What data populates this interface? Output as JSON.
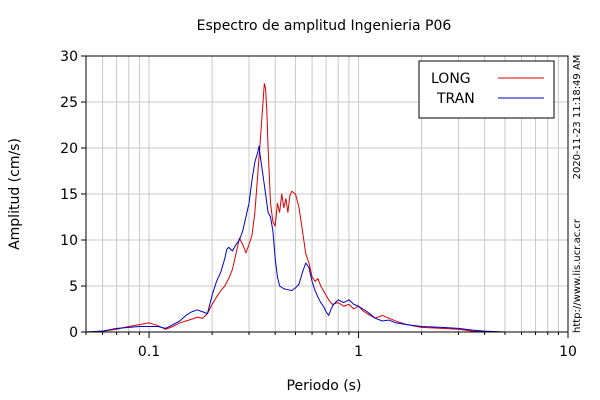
{
  "chart_data": {
    "type": "line",
    "title": "Espectro de amplitud Ingenieria P06",
    "xlabel": "Periodo (s)",
    "ylabel": "Amplitud (cm/s)",
    "x_scale": "log",
    "xlim": [
      0.05,
      10
    ],
    "ylim": [
      0,
      30
    ],
    "x_tick_labels": [
      {
        "value": 0.1,
        "label": "0.1"
      },
      {
        "value": 1,
        "label": "1"
      },
      {
        "value": 10,
        "label": "10"
      }
    ],
    "y_ticks": [
      0,
      5,
      10,
      15,
      20,
      25,
      30
    ],
    "grid": true,
    "legend_position": "top-right",
    "timestamp": "2020-11-23 11:18:49 AM",
    "url": "http://www.lis.ucr.ac.cr",
    "series": [
      {
        "name": "LONG",
        "color": "#dd0000",
        "points": [
          [
            0.05,
            0
          ],
          [
            0.06,
            0.1
          ],
          [
            0.07,
            0.3
          ],
          [
            0.08,
            0.6
          ],
          [
            0.09,
            0.8
          ],
          [
            0.1,
            1.0
          ],
          [
            0.11,
            0.7
          ],
          [
            0.12,
            0.3
          ],
          [
            0.13,
            0.6
          ],
          [
            0.14,
            1.0
          ],
          [
            0.15,
            1.2
          ],
          [
            0.16,
            1.4
          ],
          [
            0.17,
            1.6
          ],
          [
            0.18,
            1.5
          ],
          [
            0.19,
            2.0
          ],
          [
            0.2,
            3.0
          ],
          [
            0.21,
            3.8
          ],
          [
            0.22,
            4.5
          ],
          [
            0.23,
            5.0
          ],
          [
            0.24,
            5.8
          ],
          [
            0.25,
            6.8
          ],
          [
            0.26,
            8.5
          ],
          [
            0.27,
            10.2
          ],
          [
            0.28,
            9.5
          ],
          [
            0.29,
            8.6
          ],
          [
            0.3,
            9.5
          ],
          [
            0.31,
            10.5
          ],
          [
            0.32,
            13.0
          ],
          [
            0.33,
            17.0
          ],
          [
            0.34,
            21.0
          ],
          [
            0.35,
            25.0
          ],
          [
            0.355,
            27.0
          ],
          [
            0.36,
            26.5
          ],
          [
            0.365,
            24.0
          ],
          [
            0.37,
            20.0
          ],
          [
            0.38,
            14.0
          ],
          [
            0.39,
            12.0
          ],
          [
            0.4,
            11.5
          ],
          [
            0.41,
            14.0
          ],
          [
            0.42,
            13.0
          ],
          [
            0.43,
            15.0
          ],
          [
            0.44,
            13.5
          ],
          [
            0.45,
            14.5
          ],
          [
            0.46,
            13.0
          ],
          [
            0.47,
            14.8
          ],
          [
            0.48,
            15.3
          ],
          [
            0.5,
            15.0
          ],
          [
            0.52,
            13.5
          ],
          [
            0.54,
            11.0
          ],
          [
            0.56,
            8.5
          ],
          [
            0.58,
            7.5
          ],
          [
            0.6,
            6.0
          ],
          [
            0.62,
            5.5
          ],
          [
            0.64,
            5.8
          ],
          [
            0.66,
            5.0
          ],
          [
            0.68,
            4.5
          ],
          [
            0.7,
            4.0
          ],
          [
            0.72,
            3.5
          ],
          [
            0.75,
            3.0
          ],
          [
            0.8,
            3.2
          ],
          [
            0.85,
            2.8
          ],
          [
            0.9,
            3.0
          ],
          [
            0.95,
            2.5
          ],
          [
            1.0,
            2.8
          ],
          [
            1.05,
            2.3
          ],
          [
            1.1,
            2.0
          ],
          [
            1.2,
            1.5
          ],
          [
            1.3,
            1.8
          ],
          [
            1.4,
            1.5
          ],
          [
            1.5,
            1.2
          ],
          [
            1.7,
            0.8
          ],
          [
            2.0,
            0.5
          ],
          [
            2.5,
            0.4
          ],
          [
            3.0,
            0.3
          ],
          [
            3.5,
            0.1
          ],
          [
            4.0,
            0.05
          ],
          [
            5.0,
            0
          ],
          [
            10,
            0
          ]
        ]
      },
      {
        "name": "TRAN",
        "color": "#0000cc",
        "points": [
          [
            0.05,
            0
          ],
          [
            0.06,
            0.1
          ],
          [
            0.07,
            0.4
          ],
          [
            0.08,
            0.5
          ],
          [
            0.09,
            0.6
          ],
          [
            0.1,
            0.6
          ],
          [
            0.11,
            0.6
          ],
          [
            0.12,
            0.4
          ],
          [
            0.13,
            0.8
          ],
          [
            0.14,
            1.2
          ],
          [
            0.15,
            1.8
          ],
          [
            0.16,
            2.2
          ],
          [
            0.17,
            2.4
          ],
          [
            0.18,
            2.2
          ],
          [
            0.19,
            2.0
          ],
          [
            0.2,
            4.0
          ],
          [
            0.21,
            5.5
          ],
          [
            0.22,
            6.5
          ],
          [
            0.23,
            8.0
          ],
          [
            0.235,
            9.0
          ],
          [
            0.24,
            9.2
          ],
          [
            0.25,
            8.8
          ],
          [
            0.26,
            9.5
          ],
          [
            0.27,
            10.0
          ],
          [
            0.28,
            11.0
          ],
          [
            0.29,
            12.5
          ],
          [
            0.3,
            14.0
          ],
          [
            0.31,
            16.5
          ],
          [
            0.32,
            18.5
          ],
          [
            0.33,
            19.5
          ],
          [
            0.335,
            20.2
          ],
          [
            0.34,
            19.0
          ],
          [
            0.35,
            17.0
          ],
          [
            0.36,
            15.0
          ],
          [
            0.37,
            13.0
          ],
          [
            0.38,
            12.5
          ],
          [
            0.39,
            11.0
          ],
          [
            0.4,
            8.0
          ],
          [
            0.41,
            6.0
          ],
          [
            0.42,
            5.0
          ],
          [
            0.44,
            4.7
          ],
          [
            0.46,
            4.6
          ],
          [
            0.48,
            4.5
          ],
          [
            0.5,
            4.8
          ],
          [
            0.52,
            5.2
          ],
          [
            0.54,
            6.5
          ],
          [
            0.56,
            7.5
          ],
          [
            0.58,
            7.0
          ],
          [
            0.6,
            5.5
          ],
          [
            0.62,
            4.5
          ],
          [
            0.64,
            3.8
          ],
          [
            0.66,
            3.2
          ],
          [
            0.68,
            2.8
          ],
          [
            0.7,
            2.2
          ],
          [
            0.72,
            1.8
          ],
          [
            0.74,
            2.5
          ],
          [
            0.76,
            3.0
          ],
          [
            0.8,
            3.5
          ],
          [
            0.85,
            3.2
          ],
          [
            0.9,
            3.5
          ],
          [
            0.95,
            3.0
          ],
          [
            1.0,
            2.8
          ],
          [
            1.1,
            2.2
          ],
          [
            1.2,
            1.5
          ],
          [
            1.3,
            1.2
          ],
          [
            1.4,
            1.3
          ],
          [
            1.5,
            1.0
          ],
          [
            1.7,
            0.8
          ],
          [
            2.0,
            0.6
          ],
          [
            2.5,
            0.5
          ],
          [
            3.0,
            0.4
          ],
          [
            3.5,
            0.2
          ],
          [
            4.0,
            0.1
          ],
          [
            5.0,
            0
          ],
          [
            10,
            0
          ]
        ]
      }
    ]
  }
}
